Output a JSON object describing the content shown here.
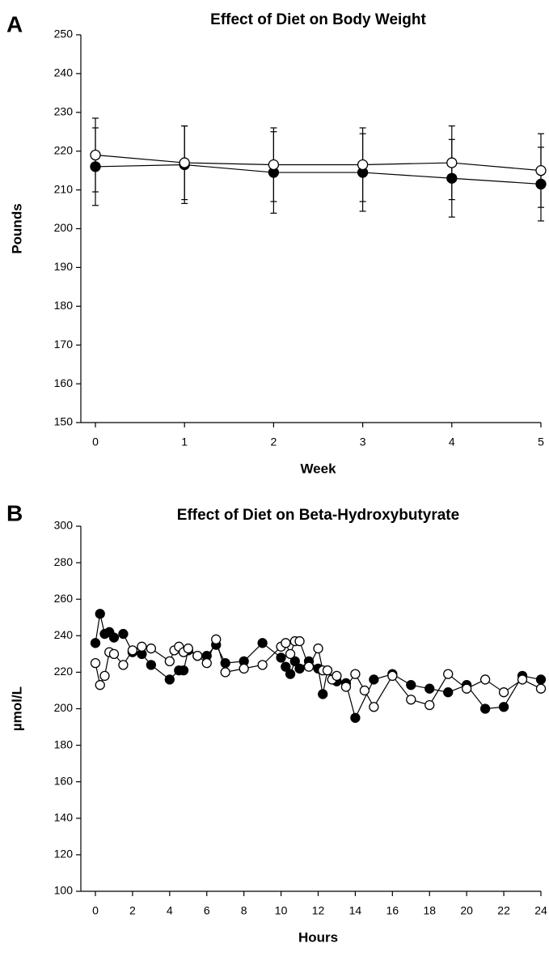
{
  "chart_data": [
    {
      "type": "line",
      "panel_label": "A",
      "title": "Effect of Diet on Body Weight",
      "x_label": "Week",
      "y_label": "Pounds",
      "xlim": [
        0,
        5
      ],
      "xticks": [
        0,
        1,
        2,
        3,
        4,
        5
      ],
      "ylim": [
        150,
        250
      ],
      "yticks": [
        150,
        160,
        170,
        180,
        190,
        200,
        210,
        220,
        230,
        240,
        250
      ],
      "series": [
        {
          "color": "#000000",
          "x": [
            0,
            1,
            2,
            3,
            4,
            5
          ],
          "values": [
            216,
            216.5,
            214.5,
            214.5,
            213,
            211.5
          ],
          "errors": [
            10,
            10,
            10.5,
            10,
            10,
            9.5
          ]
        },
        {
          "color": "#ffffff",
          "x": [
            0,
            1,
            2,
            3,
            4,
            5
          ],
          "values": [
            219,
            217,
            216.5,
            216.5,
            217,
            215
          ],
          "errors": [
            9.5,
            9.5,
            9.5,
            9.5,
            9.5,
            9.5
          ]
        }
      ]
    },
    {
      "type": "line",
      "panel_label": "B",
      "title": "Effect of Diet on Beta-Hydroxybutyrate",
      "x_label": "Hours",
      "y_label": "µmol/L",
      "xlim": [
        0,
        24
      ],
      "xticks": [
        0,
        2,
        4,
        6,
        8,
        10,
        12,
        14,
        16,
        18,
        20,
        22,
        24
      ],
      "ylim": [
        100,
        300
      ],
      "yticks": [
        100,
        120,
        140,
        160,
        180,
        200,
        220,
        240,
        260,
        280,
        300
      ],
      "series": [
        {
          "color": "#000000",
          "x": [
            0,
            0.25,
            0.5,
            0.75,
            1,
            1.5,
            2,
            2.5,
            3,
            4,
            4.5,
            4.75,
            5,
            5.5,
            6,
            6.5,
            7,
            8,
            9,
            10,
            10.25,
            10.5,
            10.75,
            11,
            11.5,
            12,
            12.25,
            12.5,
            13,
            13.5,
            14,
            15,
            16,
            17,
            18,
            19,
            20,
            21,
            22,
            23,
            24
          ],
          "values": [
            236,
            252,
            241,
            242,
            239,
            241,
            231,
            230,
            224,
            216,
            221,
            221,
            232,
            229,
            229,
            235,
            225,
            226,
            236,
            228,
            223,
            219,
            226,
            222,
            226,
            222,
            208,
            221,
            215,
            214,
            195,
            216,
            219,
            213,
            211,
            209,
            213,
            200,
            201,
            218,
            216
          ]
        },
        {
          "color": "#ffffff",
          "x": [
            0,
            0.25,
            0.5,
            0.75,
            1,
            1.5,
            2,
            2.5,
            3,
            4,
            4.25,
            4.5,
            4.75,
            5,
            5.5,
            6,
            6.5,
            7,
            8,
            9,
            10,
            10.25,
            10.5,
            10.75,
            11,
            11.5,
            12,
            12.25,
            12.5,
            12.75,
            13,
            13.5,
            14,
            14.5,
            15,
            16,
            17,
            18,
            19,
            20,
            21,
            22,
            23,
            24
          ],
          "values": [
            225,
            213,
            218,
            231,
            230,
            224,
            232,
            234,
            233,
            226,
            232,
            234,
            231,
            233,
            229,
            225,
            238,
            220,
            222,
            224,
            234,
            236,
            230,
            237,
            237,
            223,
            233,
            221,
            221,
            216,
            218,
            212,
            219,
            210,
            201,
            218,
            205,
            202,
            219,
            211,
            216,
            209,
            216,
            211
          ]
        }
      ]
    }
  ]
}
